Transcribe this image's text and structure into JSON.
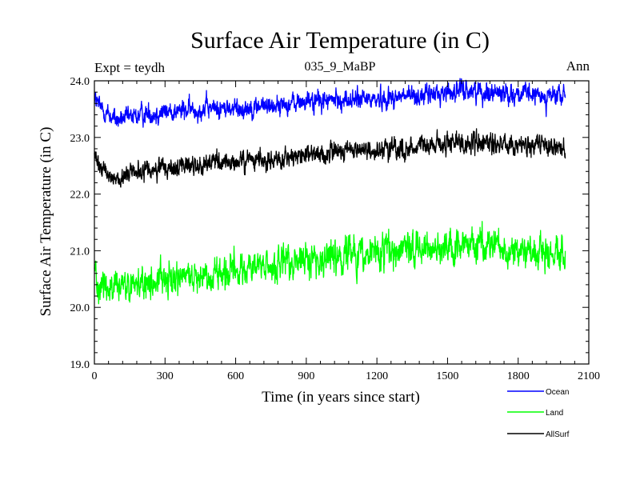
{
  "chart_data": {
    "type": "line",
    "title": "Surface Air Temperature (in C)",
    "subtitle": "035_9_MaBP",
    "left_label": "Expt = teydh",
    "right_label": "Ann",
    "xlabel": "Time (in years since start)",
    "ylabel": "Surface Air Temperature (in C)",
    "xlim": [
      0,
      2100
    ],
    "ylim": [
      19.0,
      24.0
    ],
    "x_ticks": [
      0,
      300,
      600,
      900,
      1200,
      1500,
      1800,
      2100
    ],
    "x_tick_labels": [
      "0",
      "300",
      "600",
      "900",
      "1200",
      "1500",
      "1800",
      "2100"
    ],
    "y_ticks": [
      19.0,
      20.0,
      21.0,
      22.0,
      23.0,
      24.0
    ],
    "y_tick_labels": [
      "19.0",
      "20.0",
      "21.0",
      "22.0",
      "23.0",
      "24.0"
    ],
    "legend_position": "bottom-right, below plot",
    "series": [
      {
        "name": "Ocean",
        "color": "#0000ff",
        "noise": 0.09,
        "x": [
          0,
          20,
          60,
          100,
          150,
          200,
          300,
          400,
          500,
          600,
          700,
          800,
          900,
          1000,
          1100,
          1200,
          1300,
          1400,
          1500,
          1550,
          1600,
          1700,
          1800,
          1900,
          2000
        ],
        "values": [
          23.7,
          23.55,
          23.4,
          23.3,
          23.35,
          23.4,
          23.45,
          23.48,
          23.52,
          23.5,
          23.55,
          23.58,
          23.63,
          23.65,
          23.66,
          23.68,
          23.72,
          23.74,
          23.8,
          23.82,
          23.83,
          23.8,
          23.77,
          23.73,
          23.72
        ]
      },
      {
        "name": "Land",
        "color": "#00ff00",
        "noise": 0.15,
        "x": [
          0,
          20,
          60,
          100,
          150,
          200,
          300,
          400,
          500,
          600,
          700,
          800,
          900,
          1000,
          1100,
          1200,
          1300,
          1400,
          1500,
          1550,
          1600,
          1700,
          1800,
          1900,
          2000
        ],
        "values": [
          20.7,
          20.45,
          20.35,
          20.3,
          20.35,
          20.4,
          20.5,
          20.55,
          20.6,
          20.65,
          20.7,
          20.72,
          20.85,
          20.9,
          20.92,
          20.95,
          21.0,
          21.02,
          21.1,
          21.12,
          21.12,
          21.05,
          21.0,
          20.97,
          20.95
        ]
      },
      {
        "name": "AllSurf",
        "color": "#000000",
        "noise": 0.09,
        "x": [
          0,
          20,
          60,
          100,
          150,
          200,
          300,
          400,
          500,
          600,
          700,
          800,
          900,
          1000,
          1100,
          1200,
          1300,
          1400,
          1500,
          1550,
          1600,
          1700,
          1800,
          1900,
          2000
        ],
        "values": [
          22.65,
          22.45,
          22.35,
          22.28,
          22.35,
          22.4,
          22.45,
          22.5,
          22.55,
          22.55,
          22.6,
          22.62,
          22.7,
          22.74,
          22.76,
          22.78,
          22.8,
          22.84,
          22.9,
          22.92,
          22.92,
          22.9,
          22.87,
          22.84,
          22.82
        ]
      }
    ]
  }
}
